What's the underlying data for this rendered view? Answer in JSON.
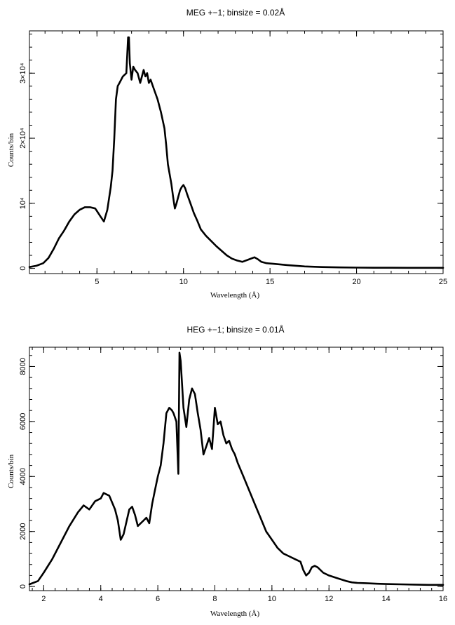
{
  "chart_data": [
    {
      "type": "line",
      "title": "MEG +−1; binsize = 0.02Å",
      "xlabel": "Wavelength (Å)",
      "ylabel": "Counts/bin",
      "xlim": [
        1.1,
        25
      ],
      "ylim": [
        -800,
        36500
      ],
      "x_ticks": [
        5,
        10,
        15,
        20,
        25
      ],
      "y_ticks": [
        {
          "value": 0,
          "label": "0"
        },
        {
          "value": 10000,
          "label": "10⁴"
        },
        {
          "value": 20000,
          "label": "2×10⁴"
        },
        {
          "value": 30000,
          "label": "3×10⁴"
        }
      ],
      "grid": false,
      "series": [
        {
          "x": [
            1.1,
            1.5,
            1.9,
            2.2,
            2.5,
            2.8,
            3.1,
            3.4,
            3.7,
            4.0,
            4.3,
            4.6,
            4.9,
            5.0,
            5.2,
            5.4,
            5.6,
            5.8,
            5.9,
            6.0,
            6.1,
            6.2,
            6.3,
            6.5,
            6.7,
            6.8,
            6.85,
            6.9,
            7.0,
            7.1,
            7.2,
            7.35,
            7.5,
            7.7,
            7.8,
            7.9,
            8.0,
            8.1,
            8.3,
            8.5,
            8.7,
            8.9,
            9.0,
            9.1,
            9.3,
            9.4,
            9.5,
            9.6,
            9.7,
            9.8,
            9.9,
            10.0,
            10.1,
            10.2,
            10.4,
            10.6,
            10.8,
            11.0,
            11.3,
            11.6,
            11.9,
            12.2,
            12.5,
            12.8,
            13.1,
            13.4,
            13.8,
            14.1,
            14.3,
            14.5,
            14.8,
            15.2,
            16,
            17,
            18,
            19,
            20,
            21,
            22,
            23,
            24,
            25
          ],
          "y": [
            200,
            400,
            800,
            1600,
            3000,
            4600,
            5800,
            7200,
            8300,
            9000,
            9400,
            9400,
            9200,
            8800,
            8000,
            7200,
            9000,
            12500,
            15000,
            20000,
            26000,
            28000,
            28500,
            29500,
            30000,
            35500,
            35500,
            31500,
            29000,
            31000,
            30500,
            30000,
            28500,
            30500,
            29500,
            30000,
            28500,
            29000,
            27500,
            26000,
            24000,
            21500,
            19000,
            16000,
            13000,
            11000,
            9200,
            10000,
            11000,
            12000,
            12500,
            12800,
            12300,
            11500,
            10000,
            8500,
            7300,
            6000,
            5000,
            4200,
            3400,
            2700,
            2000,
            1500,
            1200,
            1000,
            1400,
            1700,
            1400,
            1000,
            800,
            700,
            500,
            300,
            200,
            150,
            120,
            100,
            100,
            80,
            80,
            80
          ]
        }
      ]
    },
    {
      "type": "line",
      "title": "HEG +−1; binsize = 0.01Å",
      "xlabel": "Wavelength (Å)",
      "ylabel": "Counts/bin",
      "xlim": [
        1.5,
        16
      ],
      "ylim": [
        -150,
        8700
      ],
      "x_ticks": [
        2,
        4,
        6,
        8,
        10,
        12,
        14,
        16
      ],
      "y_ticks": [
        {
          "value": 0,
          "label": "0"
        },
        {
          "value": 2000,
          "label": "2000"
        },
        {
          "value": 4000,
          "label": "4000"
        },
        {
          "value": 6000,
          "label": "6000"
        },
        {
          "value": 8000,
          "label": "8000"
        }
      ],
      "grid": false,
      "series": [
        {
          "x": [
            1.5,
            1.8,
            2.0,
            2.3,
            2.6,
            2.9,
            3.2,
            3.4,
            3.6,
            3.8,
            4.0,
            4.1,
            4.3,
            4.5,
            4.6,
            4.7,
            4.8,
            5.0,
            5.1,
            5.2,
            5.3,
            5.5,
            5.6,
            5.7,
            5.8,
            5.9,
            6.0,
            6.1,
            6.2,
            6.3,
            6.4,
            6.5,
            6.55,
            6.65,
            6.72,
            6.76,
            6.8,
            6.9,
            7.0,
            7.1,
            7.2,
            7.3,
            7.4,
            7.5,
            7.6,
            7.7,
            7.8,
            7.9,
            8.0,
            8.1,
            8.2,
            8.3,
            8.4,
            8.5,
            8.6,
            8.7,
            8.8,
            9.0,
            9.2,
            9.4,
            9.6,
            9.8,
            10.0,
            10.2,
            10.4,
            10.6,
            10.8,
            11.0,
            11.1,
            11.2,
            11.3,
            11.4,
            11.5,
            11.6,
            11.8,
            12.0,
            12.3,
            12.6,
            12.8,
            13.0,
            13.3,
            13.7,
            14.0,
            14.5,
            15.0,
            15.5,
            16.0
          ],
          "y": [
            80,
            200,
            500,
            1000,
            1600,
            2200,
            2700,
            2950,
            2800,
            3100,
            3200,
            3400,
            3300,
            2800,
            2400,
            1700,
            1900,
            2800,
            2900,
            2600,
            2200,
            2400,
            2500,
            2300,
            3000,
            3500,
            4000,
            4400,
            5200,
            6300,
            6500,
            6400,
            6300,
            6000,
            4100,
            8500,
            8200,
            6500,
            5800,
            6800,
            7200,
            7000,
            6300,
            5700,
            4800,
            5100,
            5400,
            5000,
            6500,
            5900,
            6000,
            5500,
            5200,
            5300,
            5000,
            4800,
            4500,
            4000,
            3500,
            3000,
            2500,
            2000,
            1700,
            1400,
            1200,
            1100,
            1000,
            900,
            600,
            400,
            500,
            700,
            750,
            700,
            500,
            400,
            300,
            200,
            150,
            130,
            120,
            100,
            90,
            80,
            70,
            60,
            60
          ]
        }
      ]
    }
  ]
}
